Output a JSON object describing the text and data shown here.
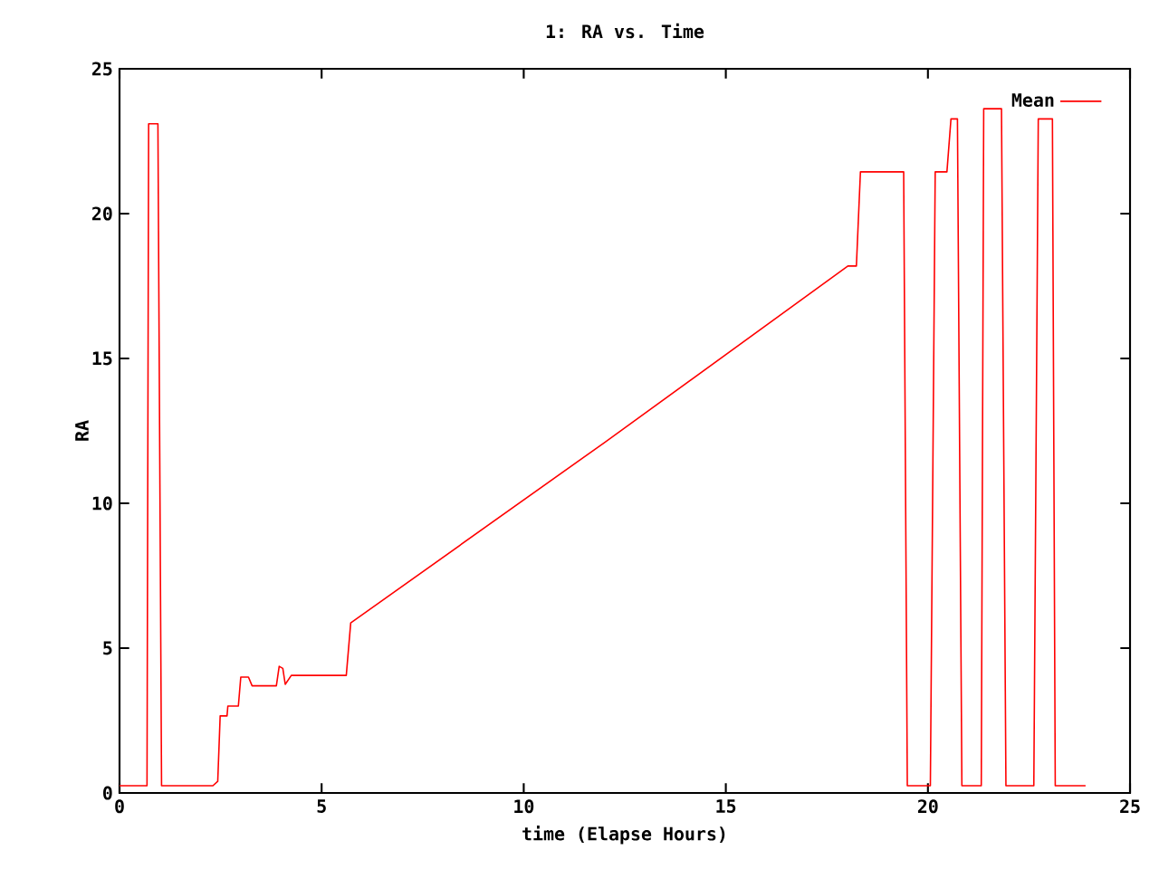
{
  "chart_data": {
    "type": "line",
    "title": "1: RA vs. Time",
    "xlabel": "time (Elapse Hours)",
    "ylabel": "RA",
    "xlim": [
      0,
      25
    ],
    "ylim": [
      0,
      25
    ],
    "xticks": [
      0,
      5,
      10,
      15,
      20,
      25
    ],
    "yticks": [
      0,
      5,
      10,
      15,
      20,
      25
    ],
    "legend": "top right",
    "marker": "none",
    "line_style": "solid",
    "series": [
      {
        "name": "Mean",
        "color": "#ff0000",
        "x": [
          0,
          0.68,
          0.72,
          0.95,
          1.04,
          2.31,
          2.43,
          2.49,
          2.66,
          2.68,
          2.94,
          3.0,
          3.19,
          3.28,
          3.88,
          3.95,
          4.04,
          4.1,
          4.25,
          5.61,
          5.72,
          12.0,
          18.02,
          18.23,
          18.33,
          19.4,
          19.49,
          20.06,
          20.18,
          20.47,
          20.57,
          20.73,
          20.84,
          21.32,
          21.38,
          21.82,
          21.93,
          22.62,
          22.73,
          23.08,
          23.15,
          23.9
        ],
        "values": [
          0.25,
          0.25,
          23.1,
          23.1,
          0.25,
          0.25,
          0.4,
          2.66,
          2.66,
          3.0,
          3.0,
          4.0,
          4.0,
          3.7,
          3.7,
          4.37,
          4.3,
          3.75,
          4.06,
          4.06,
          5.87,
          12.1,
          18.19,
          18.19,
          21.44,
          21.44,
          0.25,
          0.25,
          21.44,
          21.44,
          23.27,
          23.27,
          0.25,
          0.25,
          23.62,
          23.62,
          0.25,
          0.25,
          23.27,
          23.27,
          0.25,
          0.25
        ]
      }
    ]
  }
}
